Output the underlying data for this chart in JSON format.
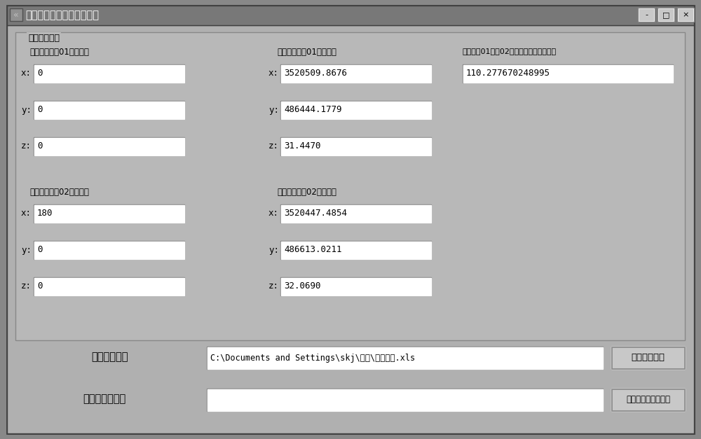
{
  "title": "中铁四局拱肋坐标转换程序",
  "section_title": "原始数据输入",
  "col1_title1": "原坐标系拱脚01点坐标：",
  "col2_title1": "新坐标系拱脚01点坐标：",
  "col3_title1": "新坐标系01点至02点坐标方位角（度）：",
  "col1_title2": "原坐标系拱脚02点坐标：",
  "col2_title2": "新坐标系拱脚02点坐标：",
  "orig_01_x": "0",
  "orig_01_y": "0",
  "orig_01_z": "0",
  "new_01_x": "3520509.8676",
  "new_01_y": "486444.1779",
  "new_01_z": "31.4470",
  "angle": "110.277670248995",
  "orig_02_x": "180",
  "orig_02_y": "0",
  "orig_02_z": "0",
  "new_02_x": "3520447.4854",
  "new_02_y": "486613.0211",
  "new_02_z": "32.0690",
  "import_label": "导入数据路径",
  "save_label": "保存新数据路径",
  "import_path": "C:\\Documents and Settings\\skj\\桌面\\原始数据.xls",
  "btn1_text": "选择原始数据",
  "btn2_text": "转化为新坐标系坐标",
  "bg_outer": "#888888",
  "bg_window": "#b0b0b0",
  "bg_titlebar": "#707070",
  "bg_panel": "#b8b8b8",
  "bg_input": "#ffffff",
  "bg_button": "#c8c8c8",
  "color_text": "#000000",
  "color_title_text": "#ffffff"
}
